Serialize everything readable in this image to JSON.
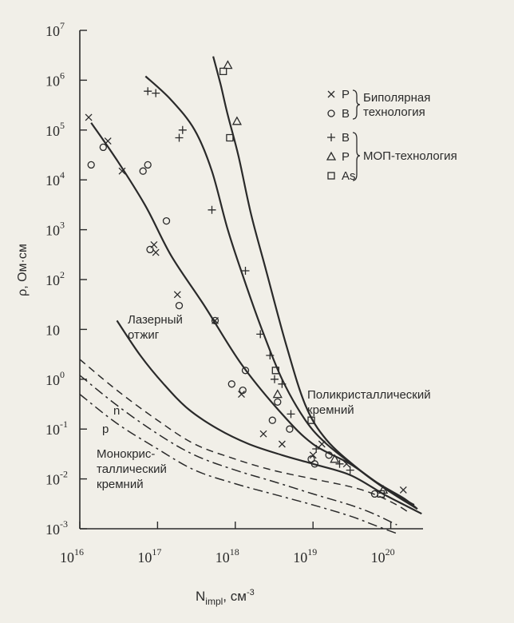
{
  "chart_data": {
    "type": "scatter",
    "title": "",
    "xlabel": "N",
    "xlabel_sub": "impl",
    "xlabel_unit": ", см",
    "xlabel_unit_sup": "-3",
    "ylabel": "ρ, Ом·см",
    "xscale": "log",
    "yscale": "log",
    "xlim": [
      1e+16,
      2.6e+20
    ],
    "ylim": [
      0.001,
      10000000.0
    ],
    "grid": false,
    "x_ticks": [
      {
        "value": 1e+16,
        "base": "10",
        "exp": "16"
      },
      {
        "value": 1e+17,
        "base": "10",
        "exp": "17"
      },
      {
        "value": 1e+18,
        "base": "10",
        "exp": "18"
      },
      {
        "value": 1e+19,
        "base": "10",
        "exp": "19"
      },
      {
        "value": 1e+20,
        "base": "10",
        "exp": "20"
      }
    ],
    "y_ticks": [
      {
        "value": 0.001,
        "base": "10",
        "exp": "-3"
      },
      {
        "value": 0.01,
        "base": "10",
        "exp": "-2"
      },
      {
        "value": 0.1,
        "base": "10",
        "exp": "-1"
      },
      {
        "value": 1,
        "base": "10",
        "exp": "0"
      },
      {
        "value": 10,
        "base": "10",
        "exp": ""
      },
      {
        "value": 100,
        "base": "10",
        "exp": "2"
      },
      {
        "value": 1000,
        "base": "10",
        "exp": "3"
      },
      {
        "value": 10000,
        "base": "10",
        "exp": "4"
      },
      {
        "value": 100000.0,
        "base": "10",
        "exp": "5"
      },
      {
        "value": 1000000.0,
        "base": "10",
        "exp": "6"
      },
      {
        "value": 10000000.0,
        "base": "10",
        "exp": "7"
      }
    ],
    "legend": {
      "placement": "top-right",
      "groups": [
        {
          "label_lines": [
            "Биполярная",
            "технология"
          ],
          "entries": [
            {
              "marker": "x",
              "label": "P"
            },
            {
              "marker": "circle",
              "label": "B"
            }
          ]
        },
        {
          "label_lines": [
            "МОП-технология"
          ],
          "entries": [
            {
              "marker": "plus",
              "label": "B"
            },
            {
              "marker": "triangle",
              "label": "P"
            },
            {
              "marker": "square",
              "label": "As"
            }
          ]
        }
      ]
    },
    "curves": [
      {
        "style": "solid",
        "points": [
          [
            1.4e+16,
            140000.0
          ],
          [
            3e+16,
            25000.0
          ],
          [
            7e+16,
            3000.0
          ],
          [
            1.5e+17,
            300
          ],
          [
            4e+17,
            30
          ],
          [
            1.2e+18,
            2
          ],
          [
            4e+18,
            0.2
          ],
          [
            1e+19,
            0.05
          ],
          [
            3e+19,
            0.02
          ],
          [
            7e+19,
            0.008
          ],
          [
            1.5e+20,
            0.004
          ],
          [
            2.2e+20,
            0.0025
          ]
        ]
      },
      {
        "style": "solid",
        "points": [
          [
            7e+16,
            1200000.0
          ],
          [
            1.5e+17,
            400000.0
          ],
          [
            3e+17,
            100000.0
          ],
          [
            5e+17,
            15000.0
          ],
          [
            8e+17,
            1000
          ],
          [
            1.3e+18,
            100
          ],
          [
            2.2e+18,
            10
          ],
          [
            4e+18,
            1
          ],
          [
            8e+18,
            0.15
          ],
          [
            1.5e+19,
            0.05
          ],
          [
            4e+19,
            0.015
          ],
          [
            9e+19,
            0.006
          ],
          [
            2e+20,
            0.003
          ]
        ]
      },
      {
        "style": "solid",
        "points": [
          [
            5.2e+17,
            3000000.0
          ],
          [
            6.5e+17,
            800000.0
          ],
          [
            8e+17,
            200000.0
          ],
          [
            1.1e+18,
            30000.0
          ],
          [
            1.6e+18,
            2000
          ],
          [
            2.5e+18,
            150
          ],
          [
            4.5e+18,
            5
          ],
          [
            8e+18,
            0.3
          ],
          [
            1.5e+19,
            0.06
          ],
          [
            4e+19,
            0.015
          ],
          [
            9e+19,
            0.006
          ],
          [
            2.2e+20,
            0.0025
          ]
        ]
      },
      {
        "style": "solid",
        "points": [
          [
            3e+16,
            15
          ],
          [
            6e+16,
            3
          ],
          [
            1.2e+17,
            0.8
          ],
          [
            2.5e+17,
            0.25
          ],
          [
            6e+17,
            0.1
          ],
          [
            1.5e+18,
            0.05
          ],
          [
            4e+18,
            0.03
          ],
          [
            1e+19,
            0.02
          ],
          [
            3e+19,
            0.012
          ],
          [
            8e+19,
            0.005
          ],
          [
            1.5e+20,
            0.003
          ],
          [
            2.5e+20,
            0.002
          ]
        ]
      },
      {
        "style": "dashed",
        "points": [
          [
            1e+16,
            2.5
          ],
          [
            3e+16,
            0.6
          ],
          [
            1e+17,
            0.15
          ],
          [
            3e+17,
            0.05
          ],
          [
            1e+18,
            0.025
          ],
          [
            3e+18,
            0.015
          ],
          [
            1e+19,
            0.01
          ],
          [
            3e+19,
            0.007
          ],
          [
            6e+19,
            0.005
          ],
          [
            1.2e+20,
            0.003
          ],
          [
            1.8e+20,
            0.002
          ]
        ]
      },
      {
        "style": "dashdot",
        "points": [
          [
            1e+16,
            1.2
          ],
          [
            3e+16,
            0.3
          ],
          [
            1e+17,
            0.08
          ],
          [
            3e+17,
            0.03
          ],
          [
            1e+18,
            0.015
          ],
          [
            3e+18,
            0.009
          ],
          [
            1e+19,
            0.005
          ],
          [
            3e+19,
            0.003
          ],
          [
            6e+19,
            0.002
          ],
          [
            1.2e+20,
            0.0012
          ]
        ]
      },
      {
        "style": "dashdot",
        "points": [
          [
            1e+16,
            0.5
          ],
          [
            3e+16,
            0.13
          ],
          [
            1e+17,
            0.04
          ],
          [
            3e+17,
            0.015
          ],
          [
            1e+18,
            0.008
          ],
          [
            3e+18,
            0.005
          ],
          [
            1e+19,
            0.003
          ],
          [
            3e+19,
            0.0018
          ],
          [
            6e+19,
            0.0012
          ],
          [
            1.2e+20,
            0.0008
          ]
        ]
      }
    ],
    "series": [
      {
        "marker": "x",
        "points": [
          [
            1.3e+16,
            180000.0
          ],
          [
            2.3e+16,
            60000.0
          ],
          [
            3.5e+16,
            15000.0
          ],
          [
            9e+16,
            500
          ],
          [
            9.5e+16,
            350
          ],
          [
            1.8e+17,
            50
          ],
          [
            5.5e+17,
            15
          ],
          [
            1.2e+18,
            0.5
          ],
          [
            2.3e+18,
            0.08
          ],
          [
            4e+18,
            0.05
          ],
          [
            1e+19,
            0.03
          ],
          [
            1.3e+19,
            0.05
          ],
          [
            2.7e+19,
            0.02
          ],
          [
            1.45e+20,
            0.006
          ]
        ]
      },
      {
        "marker": "circle",
        "points": [
          [
            1.4e+16,
            20000.0
          ],
          [
            2e+16,
            45000.0
          ],
          [
            6.5e+16,
            15000.0
          ],
          [
            7.5e+16,
            20000.0
          ],
          [
            8e+16,
            400
          ],
          [
            1.3e+17,
            1500
          ],
          [
            1.9e+17,
            30
          ],
          [
            5.5e+17,
            15
          ],
          [
            9e+17,
            0.8
          ],
          [
            1.25e+18,
            0.6
          ],
          [
            1.35e+18,
            1.5
          ],
          [
            3e+18,
            0.15
          ],
          [
            3.5e+18,
            0.35
          ],
          [
            5e+18,
            0.1
          ],
          [
            9.5e+18,
            0.025
          ],
          [
            1.05e+19,
            0.02
          ],
          [
            1.6e+19,
            0.03
          ],
          [
            6.2e+19,
            0.005
          ]
        ]
      },
      {
        "marker": "plus",
        "points": [
          [
            7.5e+16,
            600000.0
          ],
          [
            9.5e+16,
            550000.0
          ],
          [
            1.9e+17,
            70000.0
          ],
          [
            2.1e+17,
            100000.0
          ],
          [
            5e+17,
            2500
          ],
          [
            1.35e+18,
            150
          ],
          [
            2.1e+18,
            8
          ],
          [
            2.8e+18,
            3
          ],
          [
            3.2e+18,
            1
          ],
          [
            4e+18,
            0.8
          ],
          [
            5.2e+18,
            0.2
          ],
          [
            1.1e+19,
            0.04
          ],
          [
            2.2e+19,
            0.02
          ],
          [
            3e+19,
            0.015
          ]
        ]
      },
      {
        "marker": "triangle",
        "points": [
          [
            8e+17,
            2000000.0
          ],
          [
            1.05e+18,
            150000.0
          ],
          [
            3.5e+18,
            0.5
          ],
          [
            1.9e+19,
            0.025
          ],
          [
            8e+19,
            0.006
          ]
        ]
      },
      {
        "marker": "square",
        "points": [
          [
            7e+17,
            1500000.0
          ],
          [
            8.5e+17,
            70000.0
          ],
          [
            3.3e+18,
            1.5
          ],
          [
            9.5e+18,
            0.15
          ],
          [
            7.5e+19,
            0.005
          ]
        ]
      }
    ],
    "annotations": [
      {
        "lines": [
          "Лазерный",
          "отжиг"
        ]
      },
      {
        "lines": [
          "Поликристаллический",
          "кремний"
        ]
      },
      {
        "lines": [
          "n"
        ]
      },
      {
        "lines": [
          "p"
        ]
      },
      {
        "lines": [
          "Монокрис-",
          "таллический",
          "кремний"
        ]
      }
    ]
  }
}
